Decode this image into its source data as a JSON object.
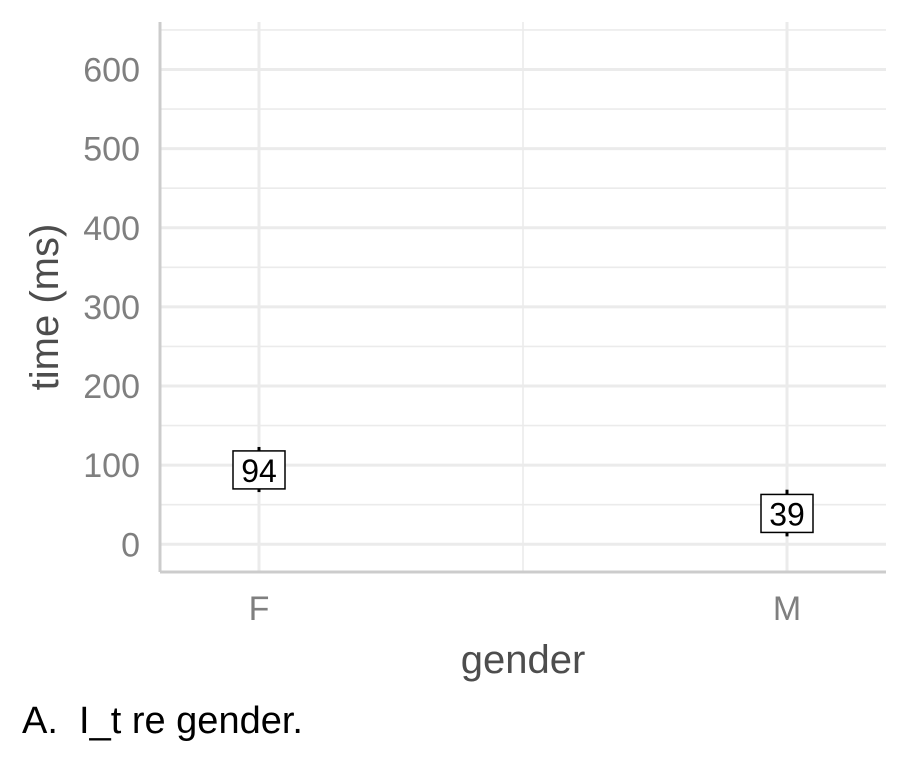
{
  "chart_data": {
    "type": "scatter",
    "categories": [
      "F",
      "M"
    ],
    "series": [
      {
        "values": [
          94,
          39
        ],
        "error_low": [
          66,
          10
        ],
        "error_high": [
          123,
          69
        ],
        "labels": [
          "94",
          "39"
        ]
      }
    ],
    "xlabel": "gender",
    "ylabel": "time (ms)",
    "yticks": [
      "0",
      "100",
      "200",
      "300",
      "400",
      "500",
      "600"
    ],
    "ylim": [
      -35,
      660
    ],
    "grid": true,
    "colors": {
      "grid": "#ebebeb",
      "axis": "#cccccc",
      "tick_text": "#7f7f7f",
      "title_text": "#4d4d4d",
      "mark": "#000000"
    }
  },
  "caption": "A.  I_t re gender."
}
